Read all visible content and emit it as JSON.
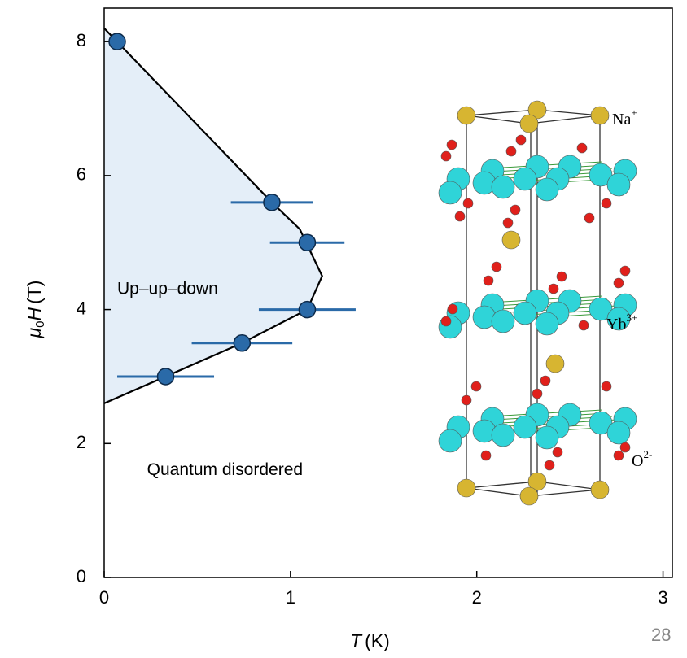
{
  "chart_data": {
    "type": "scatter",
    "xlabel": {
      "var": "T",
      "unit": "(K)"
    },
    "ylabel": {
      "symbol": "μ",
      "sub": "0",
      "var": "H",
      "unit": "(T)"
    },
    "xlim": [
      0,
      3.05
    ],
    "ylim": [
      0,
      8.5
    ],
    "xticks": [
      0,
      1,
      2,
      3
    ],
    "yticks": [
      0,
      2,
      4,
      6,
      8
    ],
    "series": [
      {
        "color": "#2a6aa8",
        "x": [
          0.07,
          0.9,
          1.09,
          1.09,
          0.74,
          0.33
        ],
        "values": [
          8.0,
          5.6,
          5.0,
          4.0,
          3.5,
          3.0
        ],
        "xerr": [
          null,
          0.22,
          0.2,
          0.26,
          0.27,
          0.26
        ]
      }
    ],
    "boundary": {
      "color": "#000000",
      "fill": "#e4eef8",
      "x": [
        0,
        0.9,
        1.05,
        1.17,
        1.09,
        0.74,
        0.33,
        0
      ],
      "values": [
        8.2,
        5.6,
        5.2,
        4.5,
        4.0,
        3.5,
        3.0,
        2.6
      ]
    },
    "annotations": [
      {
        "text": "Up–up–down",
        "x": 0.07,
        "y": 4.3
      },
      {
        "text": "Quantum disordered",
        "x": 0.23,
        "y": 1.6
      }
    ],
    "structure_labels": [
      {
        "base": "Na",
        "sup": "+"
      },
      {
        "base": "Yb",
        "sup": "3+"
      },
      {
        "base": "O",
        "sup": "2-"
      }
    ],
    "page_number": "28"
  }
}
